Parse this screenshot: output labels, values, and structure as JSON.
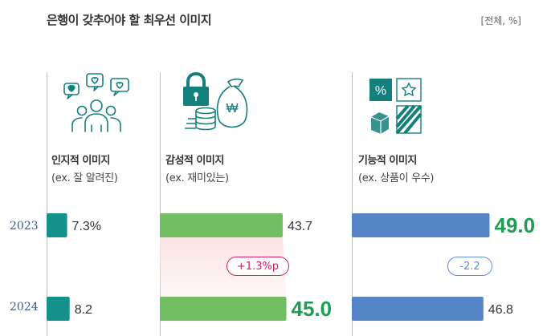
{
  "title": "은행이 갖추어야 할 최우선 이미지",
  "unit": "[전체, %]",
  "years": [
    "2023",
    "2024"
  ],
  "colors": {
    "teal": "#14918a",
    "green": "#72bf63",
    "blue": "#5585c6",
    "highlight_green": "#1f9d54",
    "pos_badge": "#d81b60",
    "neg_badge": "#5b8fd1",
    "icon": "#14807d"
  },
  "categories": [
    {
      "title": "인지적 이미지",
      "subtitle": "(ex. 잘 알려진)",
      "icon": "people-heart-icon"
    },
    {
      "title": "감성적 이미지",
      "subtitle": "(ex. 재미있는)",
      "icon": "lock-coins-icon"
    },
    {
      "title": "기능적 이미지",
      "subtitle": "(ex. 상품이 우수)",
      "icon": "function-tiles-icon"
    }
  ],
  "badges": {
    "emotional_change": "+1.3%p",
    "functional_change": "-2.2"
  },
  "chart_data": {
    "type": "bar",
    "orientation": "horizontal",
    "categories": [
      "인지적 이미지",
      "감성적 이미지",
      "기능적 이미지"
    ],
    "series": [
      {
        "name": "2023",
        "values": [
          7.3,
          43.7,
          49.0
        ],
        "labels": [
          "7.3%",
          "43.7",
          "49.0"
        ]
      },
      {
        "name": "2024",
        "values": [
          8.2,
          45.0,
          46.8
        ],
        "labels": [
          "8.2",
          "45.0",
          "46.8"
        ]
      }
    ],
    "highlighted": {
      "2023": [
        false,
        false,
        true
      ],
      "2024": [
        false,
        true,
        false
      ]
    },
    "ylim": [
      0,
      49
    ]
  }
}
